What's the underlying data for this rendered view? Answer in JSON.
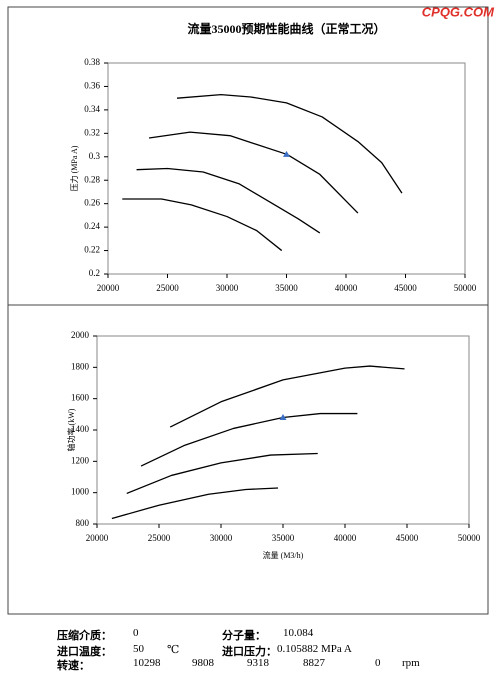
{
  "watermark": "CPQG.COM",
  "chart_data": [
    {
      "type": "line",
      "title": "流量35000预期性能曲线（正常工况）",
      "y_label": "压力 (MPa A)",
      "xlim": [
        20000,
        50000
      ],
      "xticks": [
        20000,
        25000,
        30000,
        35000,
        40000,
        45000,
        50000
      ],
      "ylim": [
        0.2,
        0.38
      ],
      "yticks": [
        0.2,
        0.22,
        0.24,
        0.26,
        0.28,
        0.3,
        0.32,
        0.34,
        0.36,
        0.38
      ],
      "series": [
        {
          "color": "#000000",
          "x": [
            25800,
            29500,
            32000,
            35000,
            38000,
            41000,
            43000,
            44700
          ],
          "values": [
            0.35,
            0.353,
            0.351,
            0.346,
            0.334,
            0.313,
            0.295,
            0.269
          ]
        },
        {
          "color": "#000000",
          "x": [
            23450,
            26900,
            30250,
            35050,
            37800,
            41000
          ],
          "values": [
            0.316,
            0.321,
            0.318,
            0.302,
            0.285,
            0.252
          ]
        },
        {
          "color": "#000000",
          "x": [
            22400,
            25000,
            28000,
            31000,
            34000,
            36000,
            37800
          ],
          "values": [
            0.289,
            0.29,
            0.287,
            0.277,
            0.259,
            0.247,
            0.235
          ]
        },
        {
          "color": "#000000",
          "x": [
            21200,
            24500,
            27000,
            30000,
            32500,
            34600
          ],
          "values": [
            0.264,
            0.264,
            0.259,
            0.249,
            0.237,
            0.22
          ]
        }
      ],
      "point": {
        "x": 35000,
        "y": 0.302,
        "color": "#3a6fc4"
      }
    },
    {
      "type": "line",
      "y_label": "轴功率 (kW)",
      "x_label": "流量 (M3/h)",
      "xlim": [
        20000,
        50000
      ],
      "xticks": [
        20000,
        25000,
        30000,
        35000,
        40000,
        45000,
        50000
      ],
      "ylim": [
        800,
        2000
      ],
      "yticks": [
        800,
        1000,
        1200,
        1400,
        1600,
        1800,
        2000
      ],
      "series": [
        {
          "color": "#000000",
          "x": [
            25900,
            30000,
            35000,
            40000,
            42000,
            44800
          ],
          "values": [
            1419,
            1580,
            1720,
            1795,
            1808,
            1790
          ]
        },
        {
          "color": "#000000",
          "x": [
            23550,
            27000,
            31000,
            35000,
            38000,
            41000
          ],
          "values": [
            1170,
            1300,
            1410,
            1480,
            1505,
            1505
          ]
        },
        {
          "color": "#000000",
          "x": [
            22400,
            26000,
            30000,
            34000,
            37800
          ],
          "values": [
            995,
            1110,
            1190,
            1240,
            1250
          ]
        },
        {
          "color": "#000000",
          "x": [
            21200,
            25000,
            29000,
            32000,
            34600
          ],
          "values": [
            835,
            920,
            990,
            1020,
            1030
          ]
        }
      ],
      "point": {
        "x": 35000,
        "y": 1480,
        "color": "#3a6fc4"
      }
    }
  ],
  "info": [
    [
      "压缩介质：",
      "0",
      "分子量：",
      "10.084"
    ],
    [
      "进口温度：",
      "50",
      "℃",
      "进口压力：",
      "0.105882 MPa A"
    ],
    [
      "转速：",
      "10298",
      "9808",
      "9318",
      "8827",
      "0",
      "rpm"
    ]
  ]
}
